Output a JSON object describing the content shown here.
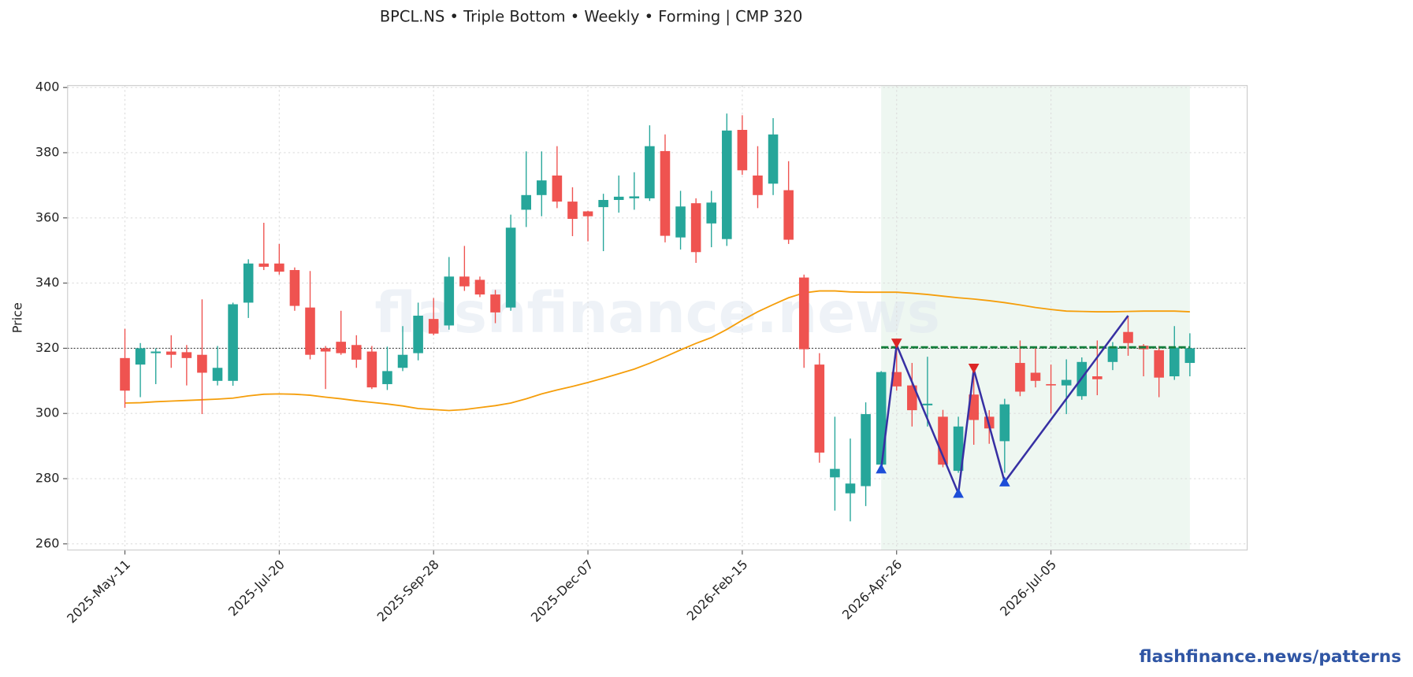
{
  "chart_data": {
    "type": "candlestick",
    "title": "BPCL.NS  •  Triple Bottom  •  Weekly  •  Forming  |  CMP 320",
    "y_label": "Price",
    "watermark": "flashfinance.news",
    "footer": "flashfinance.news/patterns",
    "x": [
      "2025-05-11",
      "2025-05-18",
      "2025-05-25",
      "2025-06-01",
      "2025-06-08",
      "2025-06-15",
      "2025-06-22",
      "2025-06-29",
      "2025-07-06",
      "2025-07-13",
      "2025-07-20",
      "2025-07-27",
      "2025-08-03",
      "2025-08-10",
      "2025-08-17",
      "2025-08-24",
      "2025-08-31",
      "2025-09-07",
      "2025-09-14",
      "2025-09-21",
      "2025-09-28",
      "2025-10-05",
      "2025-10-12",
      "2025-10-19",
      "2025-10-26",
      "2025-11-02",
      "2025-11-09",
      "2025-11-16",
      "2025-11-23",
      "2025-11-30",
      "2025-12-07",
      "2025-12-14",
      "2025-12-21",
      "2025-12-28",
      "2026-01-04",
      "2026-01-11",
      "2026-01-18",
      "2026-01-25",
      "2026-02-01",
      "2026-02-08",
      "2026-02-15",
      "2026-02-22",
      "2026-03-01",
      "2026-03-08",
      "2026-03-15",
      "2026-03-22",
      "2026-03-29",
      "2026-04-05",
      "2026-04-12",
      "2026-04-19",
      "2026-04-26",
      "2026-05-03",
      "2026-05-10",
      "2026-05-17",
      "2026-05-24",
      "2026-05-31",
      "2026-06-07",
      "2026-06-14",
      "2026-06-21",
      "2026-06-28",
      "2026-07-05",
      "2026-07-12",
      "2026-07-19",
      "2026-07-26",
      "2026-08-02",
      "2026-08-09",
      "2026-08-16",
      "2026-08-23",
      "2026-08-30",
      "2026-09-06"
    ],
    "open": [
      317,
      315,
      318.5,
      319,
      318.8,
      318,
      310,
      310,
      334,
      346,
      346,
      344,
      332.5,
      320,
      322,
      321,
      319,
      309,
      314,
      318.5,
      329,
      327,
      342,
      341,
      336.5,
      332.5,
      362.5,
      367,
      373,
      365,
      362,
      363.3,
      365.5,
      366,
      366,
      380.5,
      354,
      364.5,
      358.3,
      353.5,
      387,
      373,
      370.5,
      368.5,
      341.7,
      315,
      280.4,
      275.5,
      277.7,
      284.3,
      312.7,
      308.6,
      302.5,
      299,
      282.4,
      305.8,
      299,
      291.5,
      315.5,
      312.5,
      309,
      308.6,
      305.3,
      311.4,
      315.8,
      325,
      320.8,
      319.4,
      311.4,
      315.5
    ],
    "high": [
      326,
      321.6,
      320,
      324,
      321,
      335,
      320.7,
      334,
      347.3,
      358.5,
      352,
      344.8,
      343.7,
      320.7,
      331.5,
      324,
      320.7,
      320.5,
      326.8,
      334,
      335.4,
      348,
      351.4,
      342,
      337.9,
      361,
      380.4,
      380.4,
      382,
      369.4,
      362.2,
      367.4,
      373,
      374,
      388.4,
      385.6,
      368.3,
      366,
      368.3,
      392,
      391.5,
      382,
      390.6,
      377.4,
      342.6,
      318.5,
      299,
      292.3,
      303.4,
      313,
      322,
      315.5,
      317.4,
      301.1,
      299,
      313.6,
      301,
      304.5,
      322.4,
      320.2,
      315,
      316.6,
      317.2,
      322.4,
      321.9,
      330,
      321.3,
      320.7,
      326.8,
      324.6
    ],
    "low": [
      301.7,
      305,
      309,
      314,
      308.6,
      299.8,
      308.6,
      308.5,
      329.3,
      344,
      342.6,
      331.5,
      316.6,
      307.5,
      318,
      314,
      307.5,
      307.2,
      313,
      316.3,
      324,
      325.7,
      337.6,
      335.7,
      327.7,
      331.5,
      357.2,
      360.5,
      363,
      354.4,
      352.8,
      349.8,
      361.6,
      362.5,
      365.2,
      352.5,
      350.3,
      346.2,
      351,
      351.4,
      373.2,
      363,
      367,
      352,
      314,
      284.9,
      270.2,
      266.9,
      271.6,
      283.2,
      307,
      296,
      296,
      283.5,
      281.8,
      290.4,
      290.7,
      281.8,
      305.3,
      308,
      300,
      299.8,
      304.2,
      305.6,
      313.3,
      317.7,
      311.4,
      305,
      310.3,
      311.4
    ],
    "close": [
      307,
      320,
      319,
      318,
      317,
      312.5,
      314,
      333.5,
      346,
      345,
      343.5,
      333,
      318,
      319,
      318.5,
      316.5,
      308,
      313,
      318,
      330,
      324.5,
      342,
      339,
      336.5,
      331,
      357,
      367,
      371.5,
      365,
      359.7,
      360.5,
      365.5,
      366.5,
      366.6,
      382,
      354.5,
      363.5,
      349.5,
      364.7,
      386.8,
      374.6,
      367,
      385.6,
      353.3,
      319.7,
      288,
      283,
      278.5,
      299.8,
      312.7,
      308.3,
      301,
      303,
      284.3,
      296,
      298,
      295.4,
      302.8,
      306.7,
      310,
      308.6,
      310.3,
      315.8,
      310.5,
      320.5,
      321.6,
      319.7,
      311,
      320.2,
      320
    ],
    "up_color": "#26a69a",
    "down_color": "#ef5350",
    "sma": {
      "color": "#f59e0b",
      "values": [
        303.2,
        303.3,
        303.6,
        303.8,
        304,
        304.2,
        304.4,
        304.7,
        305.4,
        305.9,
        306,
        305.9,
        305.6,
        305,
        304.5,
        303.9,
        303.4,
        302.9,
        302.3,
        301.5,
        301.2,
        300.9,
        301.2,
        301.8,
        302.4,
        303.2,
        304.5,
        306,
        307.2,
        308.3,
        309.5,
        310.8,
        312.2,
        313.6,
        315.4,
        317.4,
        319.5,
        321.5,
        323.3,
        325.8,
        328.6,
        331.2,
        333.4,
        335.5,
        337,
        337.6,
        337.6,
        337.3,
        337.2,
        337.2,
        337.2,
        336.9,
        336.5,
        336,
        335.5,
        335.1,
        334.6,
        334,
        333.3,
        332.5,
        331.9,
        331.4,
        331.3,
        331.2,
        331.2,
        331.3,
        331.4,
        331.4,
        331.4,
        331.2
      ]
    },
    "cmp_line": 320,
    "pattern": {
      "start": "2026-04-19",
      "end": "2026-09-06",
      "shade_color": "#e8f4ec",
      "neckline": 320.3,
      "neckline_color": "#15803d",
      "zigzag_color": "#3730a3",
      "zigzag": [
        {
          "x": "2026-04-19",
          "y": 283
        },
        {
          "x": "2026-04-26",
          "y": 321
        },
        {
          "x": "2026-05-24",
          "y": 275.5
        },
        {
          "x": "2026-05-31",
          "y": 313.5
        },
        {
          "x": "2026-06-14",
          "y": 279
        },
        {
          "x": "2026-08-09",
          "y": 330
        }
      ],
      "peaks": [
        {
          "x": "2026-04-26",
          "y": 321.6
        },
        {
          "x": "2026-05-31",
          "y": 313.9
        }
      ],
      "troughs": [
        {
          "x": "2026-04-19",
          "y": 283
        },
        {
          "x": "2026-05-24",
          "y": 275.5
        },
        {
          "x": "2026-06-14",
          "y": 279
        }
      ]
    },
    "xlim": [
      "2025-04-15",
      "2026-10-02"
    ],
    "ylim": [
      258.1,
      400.6
    ],
    "yticks": [
      260,
      280,
      300,
      320,
      340,
      360,
      380,
      400
    ],
    "xticks": [
      {
        "value": "2025-05-11",
        "label": "2025-May-11"
      },
      {
        "value": "2025-07-20",
        "label": "2025-Jul-20"
      },
      {
        "value": "2025-09-28",
        "label": "2025-Sep-28"
      },
      {
        "value": "2025-12-07",
        "label": "2025-Dec-07"
      },
      {
        "value": "2026-02-15",
        "label": "2026-Feb-15"
      },
      {
        "value": "2026-04-26",
        "label": "2026-Apr-26"
      },
      {
        "value": "2026-07-05",
        "label": "2026-Jul-05"
      }
    ],
    "grid": true
  }
}
